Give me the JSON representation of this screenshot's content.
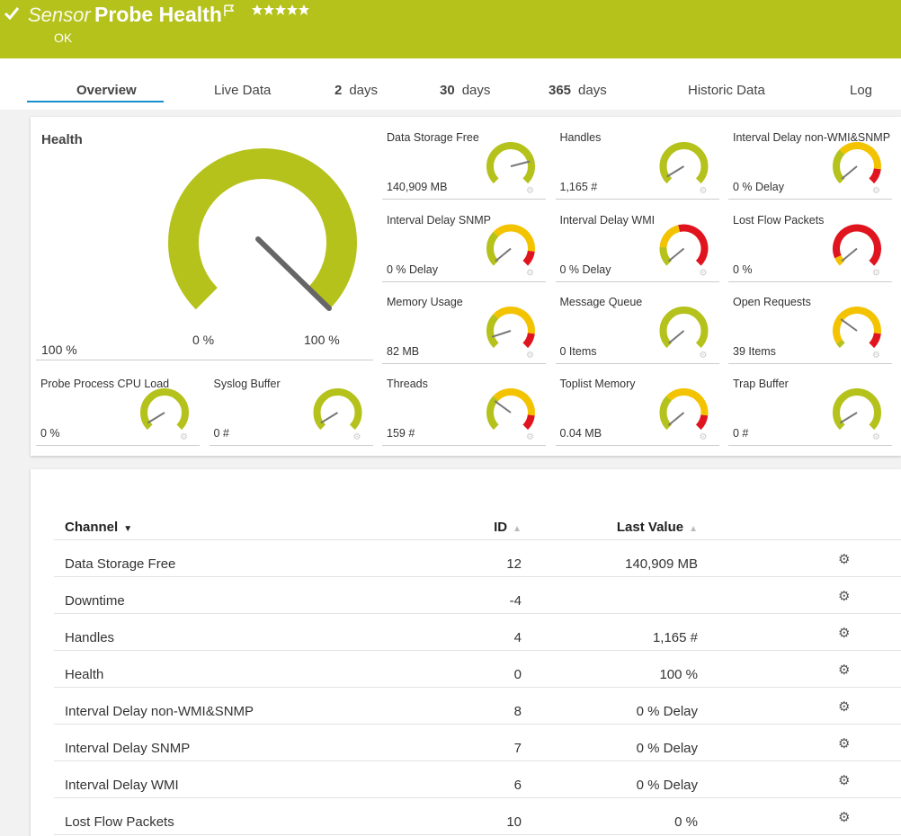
{
  "header": {
    "kind": "Sensor",
    "title": "Probe Health",
    "status": "OK"
  },
  "tabs": [
    {
      "label": "Overview"
    },
    {
      "label": "Live Data"
    },
    {
      "number": "2",
      "unit": "days"
    },
    {
      "number": "30",
      "unit": "days"
    },
    {
      "number": "365",
      "unit": "days"
    },
    {
      "label": "Historic Data"
    },
    {
      "label": "Log"
    }
  ],
  "health": {
    "title": "Health",
    "value": "100 %",
    "min": "0 %",
    "max": "100 %"
  },
  "gauges": [
    {
      "name": "Data Storage Free",
      "value": "140,909 MB"
    },
    {
      "name": "Handles",
      "value": "1,165 #"
    },
    {
      "name": "Interval Delay non-WMI&SNMP",
      "value": "0 % Delay"
    },
    {
      "name": "Interval Delay SNMP",
      "value": "0 % Delay"
    },
    {
      "name": "Interval Delay WMI",
      "value": "0 % Delay"
    },
    {
      "name": "Lost Flow Packets",
      "value": "0 %"
    },
    {
      "name": "Memory Usage",
      "value": "82 MB"
    },
    {
      "name": "Message Queue",
      "value": "0 Items"
    },
    {
      "name": "Open Requests",
      "value": "39 Items"
    },
    {
      "name": "Probe Process CPU Load",
      "value": "0 %"
    },
    {
      "name": "Syslog Buffer",
      "value": "0 #"
    },
    {
      "name": "Threads",
      "value": "159 #"
    },
    {
      "name": "Toplist Memory",
      "value": "0.04 MB"
    },
    {
      "name": "Trap Buffer",
      "value": "0 #"
    }
  ],
  "table": {
    "columns": [
      "Channel",
      "ID",
      "Last Value"
    ],
    "rows": [
      {
        "channel": "Data Storage Free",
        "id": 12,
        "last": "140,909 MB"
      },
      {
        "channel": "Downtime",
        "id": -4
      },
      {
        "channel": "Handles",
        "id": 4,
        "last": "1,165 #"
      },
      {
        "channel": "Health",
        "id": 0,
        "last": "100 %"
      },
      {
        "channel": "Interval Delay non-WMI&SNMP",
        "id": 8,
        "last": "0 % Delay"
      },
      {
        "channel": "Interval Delay SNMP",
        "id": 7,
        "last": "0 % Delay"
      },
      {
        "channel": "Interval Delay WMI",
        "id": 6,
        "last": "0 % Delay"
      },
      {
        "channel": "Lost Flow Packets",
        "id": 10,
        "last": "0 %"
      }
    ]
  }
}
